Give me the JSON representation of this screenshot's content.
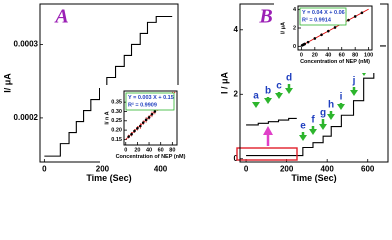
{
  "chart_data": [
    {
      "type": "line",
      "panel_label": "A",
      "xlabel": "Time (Sec)",
      "ylabel": "I/ μA",
      "xlim": [
        -15,
        460
      ],
      "ylim": [
        0.00014,
        0.000355
      ],
      "xticks": [
        0,
        200,
        400
      ],
      "yticks": [
        0.0002,
        0.0003
      ],
      "series": [
        {
          "color": "#000000",
          "x": [
            0,
            55,
            55,
            85,
            85,
            110,
            110,
            135,
            135,
            160,
            160,
            190,
            190,
            215,
            215,
            245,
            245,
            275,
            275,
            300,
            300,
            330,
            330,
            355,
            355,
            385,
            385,
            440
          ],
          "values": [
            0.000148,
            0.000148,
            0.000165,
            0.000165,
            0.00018,
            0.00018,
            0.000195,
            0.000195,
            0.00021,
            0.00021,
            0.000225,
            0.000225,
            0.00024,
            0.00024,
            0.000255,
            0.000255,
            0.00027,
            0.00027,
            0.000285,
            0.000285,
            0.0003,
            0.0003,
            0.000315,
            0.000315,
            0.00033,
            0.00033,
            0.000338,
            0.000338
          ]
        }
      ]
    },
    {
      "type": "scatter",
      "xlabel": "Concentration of NEP (nM)",
      "ylabel": "I/ n A",
      "xlim": [
        -3,
        88
      ],
      "ylim": [
        0.12,
        0.41
      ],
      "xticks": [
        0,
        20,
        40,
        60,
        80
      ],
      "yticks": [
        0.15,
        {
          "value": 0.2,
          "label": "0.20"
        },
        0.25,
        {
          "value": 0.3,
          "label": "0.30"
        },
        0.35
      ],
      "equation": "Y = 0.003 X + 0.15",
      "r_squared": "R² = 0.9909",
      "series": [
        {
          "color": "#000000",
          "error_color": "#dd0000",
          "x": [
            5,
            10,
            15,
            20,
            25,
            30,
            35,
            40,
            45,
            50,
            55,
            60,
            65,
            70,
            75,
            80
          ],
          "values": [
            0.165,
            0.178,
            0.195,
            0.21,
            0.222,
            0.24,
            0.255,
            0.268,
            0.285,
            0.3,
            0.315,
            0.33,
            0.345,
            0.36,
            0.372,
            0.39
          ],
          "errors": [
            0.01,
            0.012,
            0.01,
            0.012,
            0.015,
            0.012,
            0.015,
            0.012,
            0.015,
            0.015,
            0.012,
            0.015,
            0.015,
            0.012,
            0.015,
            0.015
          ]
        }
      ],
      "fit": {
        "color": "#dd0000",
        "x": [
          0,
          85
        ],
        "values": [
          0.15,
          0.405
        ]
      }
    },
    {
      "type": "line",
      "panel_label": "B",
      "xlabel": "Time (Sec)",
      "ylabel": "I / μA",
      "xlim": [
        -30,
        700
      ],
      "ylim": [
        -0.1,
        4.8
      ],
      "xticks": [
        0,
        200,
        400,
        600
      ],
      "yticks": [
        0,
        2,
        4
      ],
      "arrow_labels": [
        "a",
        "b",
        "c",
        "d",
        "e",
        "f",
        "g",
        "h",
        "i",
        "j",
        "k",
        "l"
      ],
      "series": [
        {
          "color": "#000000",
          "x": [
            0,
            280,
            280,
            330,
            330,
            380,
            380,
            420,
            420,
            470,
            470,
            530,
            530,
            580,
            580,
            630,
            630,
            690
          ],
          "values": [
            0.1,
            0.1,
            0.35,
            0.35,
            0.5,
            0.5,
            0.7,
            0.7,
            1.0,
            1.0,
            1.35,
            1.35,
            1.8,
            1.8,
            2.5,
            2.5,
            3.5,
            3.5
          ]
        },
        {
          "color": "#000000",
          "x": [
            0,
            60,
            60,
            110,
            110,
            160,
            160,
            210,
            210,
            250
          ],
          "values": [
            1.05,
            1.05,
            1.1,
            1.1,
            1.15,
            1.15,
            1.2,
            1.2,
            1.25,
            1.25
          ]
        }
      ]
    },
    {
      "type": "scatter",
      "xlabel": "Concentration of NEP (nM)",
      "ylabel": "I/ μA",
      "xlim": [
        -5,
        105
      ],
      "ylim": [
        -0.4,
        4.4
      ],
      "xticks": [
        0,
        20,
        40,
        60,
        80,
        100
      ],
      "yticks": [
        0,
        2,
        4
      ],
      "equation": "Y = 0.04 X + 0.06",
      "r_squared": "R² = 0.9914",
      "series": [
        {
          "color": "#000000",
          "error_color": "#dd0000",
          "x": [
            1,
            2,
            3,
            4,
            5,
            10,
            20,
            30,
            40,
            50,
            60,
            70,
            80,
            90
          ],
          "values": [
            0.1,
            0.14,
            0.18,
            0.22,
            0.26,
            0.46,
            0.86,
            1.26,
            1.66,
            2.06,
            2.46,
            2.86,
            3.26,
            3.66
          ],
          "errors": [
            0.1,
            0.1,
            0.1,
            0.1,
            0.1,
            0.12,
            0.15,
            0.15,
            0.15,
            0.15,
            0.15,
            0.15,
            0.15,
            0.15
          ]
        }
      ],
      "fit": {
        "color": "#dd0000",
        "x": [
          0,
          100
        ],
        "values": [
          0.06,
          4.06
        ]
      }
    }
  ]
}
